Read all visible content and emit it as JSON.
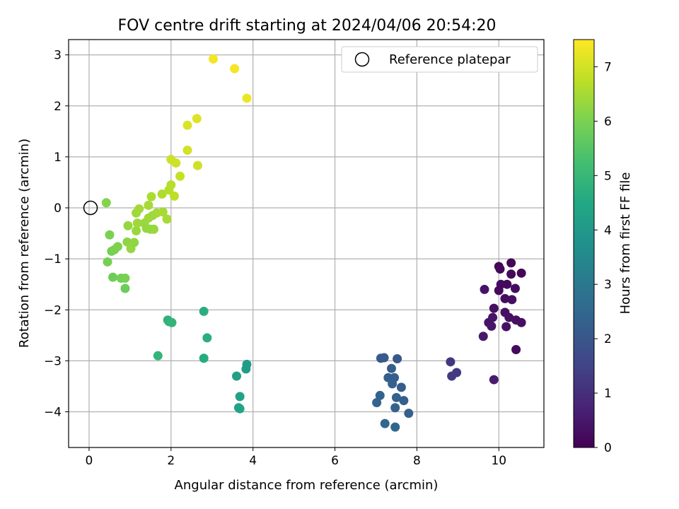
{
  "chart_data": {
    "type": "scatter",
    "title": "FOV centre drift starting at 2024/04/06 20:54:20",
    "xlabel": "Angular distance from reference (arcmin)",
    "ylabel": "Rotation from reference (arcmin)",
    "xlim": [
      -0.5,
      11.1
    ],
    "ylim": [
      -4.7,
      3.3
    ],
    "xticks": [
      0,
      2,
      4,
      6,
      8,
      10
    ],
    "yticks": [
      -4,
      -3,
      -2,
      -1,
      0,
      1,
      2,
      3
    ],
    "xtick_labels": [
      "0",
      "2",
      "4",
      "6",
      "8",
      "10"
    ],
    "ytick_labels": [
      "−4",
      "−3",
      "−2",
      "−1",
      "0",
      "1",
      "2",
      "3"
    ],
    "grid": true,
    "colormap": "viridis",
    "colorbar": {
      "label": "Hours from first FF file",
      "range": [
        0,
        7.5
      ],
      "ticks": [
        0,
        1,
        2,
        3,
        4,
        5,
        6,
        7
      ],
      "tick_labels": [
        "0",
        "1",
        "2",
        "3",
        "4",
        "5",
        "6",
        "7"
      ]
    },
    "legend": {
      "placement": "top-right",
      "entries": [
        {
          "label": "Reference platepar",
          "marker": "open-circle"
        }
      ]
    },
    "reference_point": {
      "x": 0,
      "y": 0
    },
    "points": [
      {
        "x": 10.3,
        "y": -1.08,
        "c": 0.1
      },
      {
        "x": 10.0,
        "y": -1.15,
        "c": 0.1
      },
      {
        "x": 10.55,
        "y": -1.28,
        "c": 0.1
      },
      {
        "x": 10.03,
        "y": -1.2,
        "c": 0.15
      },
      {
        "x": 10.3,
        "y": -1.3,
        "c": 0.15
      },
      {
        "x": 10.05,
        "y": -1.5,
        "c": 0.2
      },
      {
        "x": 10.2,
        "y": -1.5,
        "c": 0.2
      },
      {
        "x": 10.0,
        "y": -1.62,
        "c": 0.2
      },
      {
        "x": 10.4,
        "y": -1.58,
        "c": 0.25
      },
      {
        "x": 10.15,
        "y": -1.78,
        "c": 0.25
      },
      {
        "x": 10.32,
        "y": -1.8,
        "c": 0.3
      },
      {
        "x": 9.65,
        "y": -1.6,
        "c": 0.4
      },
      {
        "x": 9.88,
        "y": -1.97,
        "c": 0.3
      },
      {
        "x": 10.15,
        "y": -2.05,
        "c": 0.35
      },
      {
        "x": 9.85,
        "y": -2.15,
        "c": 0.4
      },
      {
        "x": 10.25,
        "y": -2.15,
        "c": 0.35
      },
      {
        "x": 10.42,
        "y": -2.2,
        "c": 0.3
      },
      {
        "x": 10.55,
        "y": -2.25,
        "c": 0.3
      },
      {
        "x": 9.75,
        "y": -2.25,
        "c": 0.4
      },
      {
        "x": 9.82,
        "y": -2.32,
        "c": 0.45
      },
      {
        "x": 10.18,
        "y": -2.33,
        "c": 0.35
      },
      {
        "x": 9.62,
        "y": -2.52,
        "c": 0.5
      },
      {
        "x": 10.42,
        "y": -2.78,
        "c": 0.2
      },
      {
        "x": 9.88,
        "y": -3.37,
        "c": 0.6
      },
      {
        "x": 8.82,
        "y": -3.02,
        "c": 1.2
      },
      {
        "x": 8.97,
        "y": -3.23,
        "c": 1.25
      },
      {
        "x": 8.85,
        "y": -3.3,
        "c": 1.3
      },
      {
        "x": 7.12,
        "y": -2.95,
        "c": 2.1
      },
      {
        "x": 7.2,
        "y": -2.94,
        "c": 2.15
      },
      {
        "x": 7.52,
        "y": -2.96,
        "c": 2.05
      },
      {
        "x": 7.38,
        "y": -3.15,
        "c": 2.2
      },
      {
        "x": 7.3,
        "y": -3.33,
        "c": 2.25
      },
      {
        "x": 7.45,
        "y": -3.33,
        "c": 2.2
      },
      {
        "x": 7.4,
        "y": -3.45,
        "c": 2.3
      },
      {
        "x": 7.62,
        "y": -3.52,
        "c": 2.2
      },
      {
        "x": 7.1,
        "y": -3.68,
        "c": 2.35
      },
      {
        "x": 7.5,
        "y": -3.72,
        "c": 2.3
      },
      {
        "x": 7.68,
        "y": -3.78,
        "c": 2.25
      },
      {
        "x": 7.02,
        "y": -3.82,
        "c": 2.4
      },
      {
        "x": 7.47,
        "y": -3.92,
        "c": 2.35
      },
      {
        "x": 7.8,
        "y": -4.03,
        "c": 2.3
      },
      {
        "x": 7.22,
        "y": -4.23,
        "c": 2.45
      },
      {
        "x": 7.47,
        "y": -4.3,
        "c": 2.5
      },
      {
        "x": 2.8,
        "y": -2.03,
        "c": 4.7
      },
      {
        "x": 1.92,
        "y": -2.2,
        "c": 4.8
      },
      {
        "x": 1.95,
        "y": -2.23,
        "c": 4.8
      },
      {
        "x": 2.02,
        "y": -2.25,
        "c": 4.9
      },
      {
        "x": 2.88,
        "y": -2.55,
        "c": 4.7
      },
      {
        "x": 1.68,
        "y": -2.9,
        "c": 4.9
      },
      {
        "x": 2.8,
        "y": -2.95,
        "c": 4.6
      },
      {
        "x": 3.85,
        "y": -3.07,
        "c": 4.1
      },
      {
        "x": 3.83,
        "y": -3.16,
        "c": 4.1
      },
      {
        "x": 3.6,
        "y": -3.3,
        "c": 4.2
      },
      {
        "x": 3.68,
        "y": -3.7,
        "c": 4.3
      },
      {
        "x": 3.65,
        "y": -3.92,
        "c": 4.35
      },
      {
        "x": 3.68,
        "y": -3.94,
        "c": 4.4
      },
      {
        "x": 0.42,
        "y": 0.1,
        "c": 6.1
      },
      {
        "x": 0.5,
        "y": -0.53,
        "c": 6.0
      },
      {
        "x": 0.55,
        "y": -0.85,
        "c": 5.9
      },
      {
        "x": 0.62,
        "y": -0.82,
        "c": 6.0
      },
      {
        "x": 0.7,
        "y": -0.76,
        "c": 6.05
      },
      {
        "x": 0.45,
        "y": -1.06,
        "c": 5.95
      },
      {
        "x": 0.58,
        "y": -1.36,
        "c": 5.85
      },
      {
        "x": 0.78,
        "y": -1.38,
        "c": 5.9
      },
      {
        "x": 0.88,
        "y": -1.38,
        "c": 5.95
      },
      {
        "x": 0.88,
        "y": -1.58,
        "c": 5.8
      },
      {
        "x": 0.93,
        "y": -0.67,
        "c": 6.2
      },
      {
        "x": 1.02,
        "y": -0.8,
        "c": 6.3
      },
      {
        "x": 1.1,
        "y": -0.68,
        "c": 6.25
      },
      {
        "x": 0.95,
        "y": -0.35,
        "c": 6.3
      },
      {
        "x": 1.15,
        "y": -0.45,
        "c": 6.35
      },
      {
        "x": 1.18,
        "y": -0.3,
        "c": 6.4
      },
      {
        "x": 1.35,
        "y": -0.3,
        "c": 6.35
      },
      {
        "x": 1.4,
        "y": -0.4,
        "c": 6.3
      },
      {
        "x": 1.5,
        "y": -0.42,
        "c": 6.3
      },
      {
        "x": 1.58,
        "y": -0.42,
        "c": 6.35
      },
      {
        "x": 1.45,
        "y": -0.2,
        "c": 6.4
      },
      {
        "x": 1.55,
        "y": -0.15,
        "c": 6.4
      },
      {
        "x": 1.65,
        "y": -0.1,
        "c": 6.45
      },
      {
        "x": 1.8,
        "y": -0.08,
        "c": 6.5
      },
      {
        "x": 1.9,
        "y": -0.22,
        "c": 6.5
      },
      {
        "x": 1.15,
        "y": -0.1,
        "c": 6.4
      },
      {
        "x": 1.22,
        "y": -0.02,
        "c": 6.45
      },
      {
        "x": 1.45,
        "y": 0.05,
        "c": 6.5
      },
      {
        "x": 1.52,
        "y": 0.22,
        "c": 6.55
      },
      {
        "x": 1.78,
        "y": 0.27,
        "c": 6.6
      },
      {
        "x": 1.95,
        "y": 0.35,
        "c": 6.65
      },
      {
        "x": 2.0,
        "y": 0.45,
        "c": 6.7
      },
      {
        "x": 2.08,
        "y": 0.23,
        "c": 6.75
      },
      {
        "x": 2.22,
        "y": 0.62,
        "c": 6.85
      },
      {
        "x": 2.0,
        "y": 0.95,
        "c": 6.9
      },
      {
        "x": 2.12,
        "y": 0.88,
        "c": 6.95
      },
      {
        "x": 2.65,
        "y": 0.83,
        "c": 6.95
      },
      {
        "x": 2.4,
        "y": 1.13,
        "c": 7.0
      },
      {
        "x": 2.4,
        "y": 1.62,
        "c": 7.1
      },
      {
        "x": 2.63,
        "y": 1.75,
        "c": 7.15
      },
      {
        "x": 3.03,
        "y": 2.92,
        "c": 7.4
      },
      {
        "x": 3.55,
        "y": 2.73,
        "c": 7.4
      },
      {
        "x": 3.85,
        "y": 2.15,
        "c": 7.3
      }
    ]
  }
}
